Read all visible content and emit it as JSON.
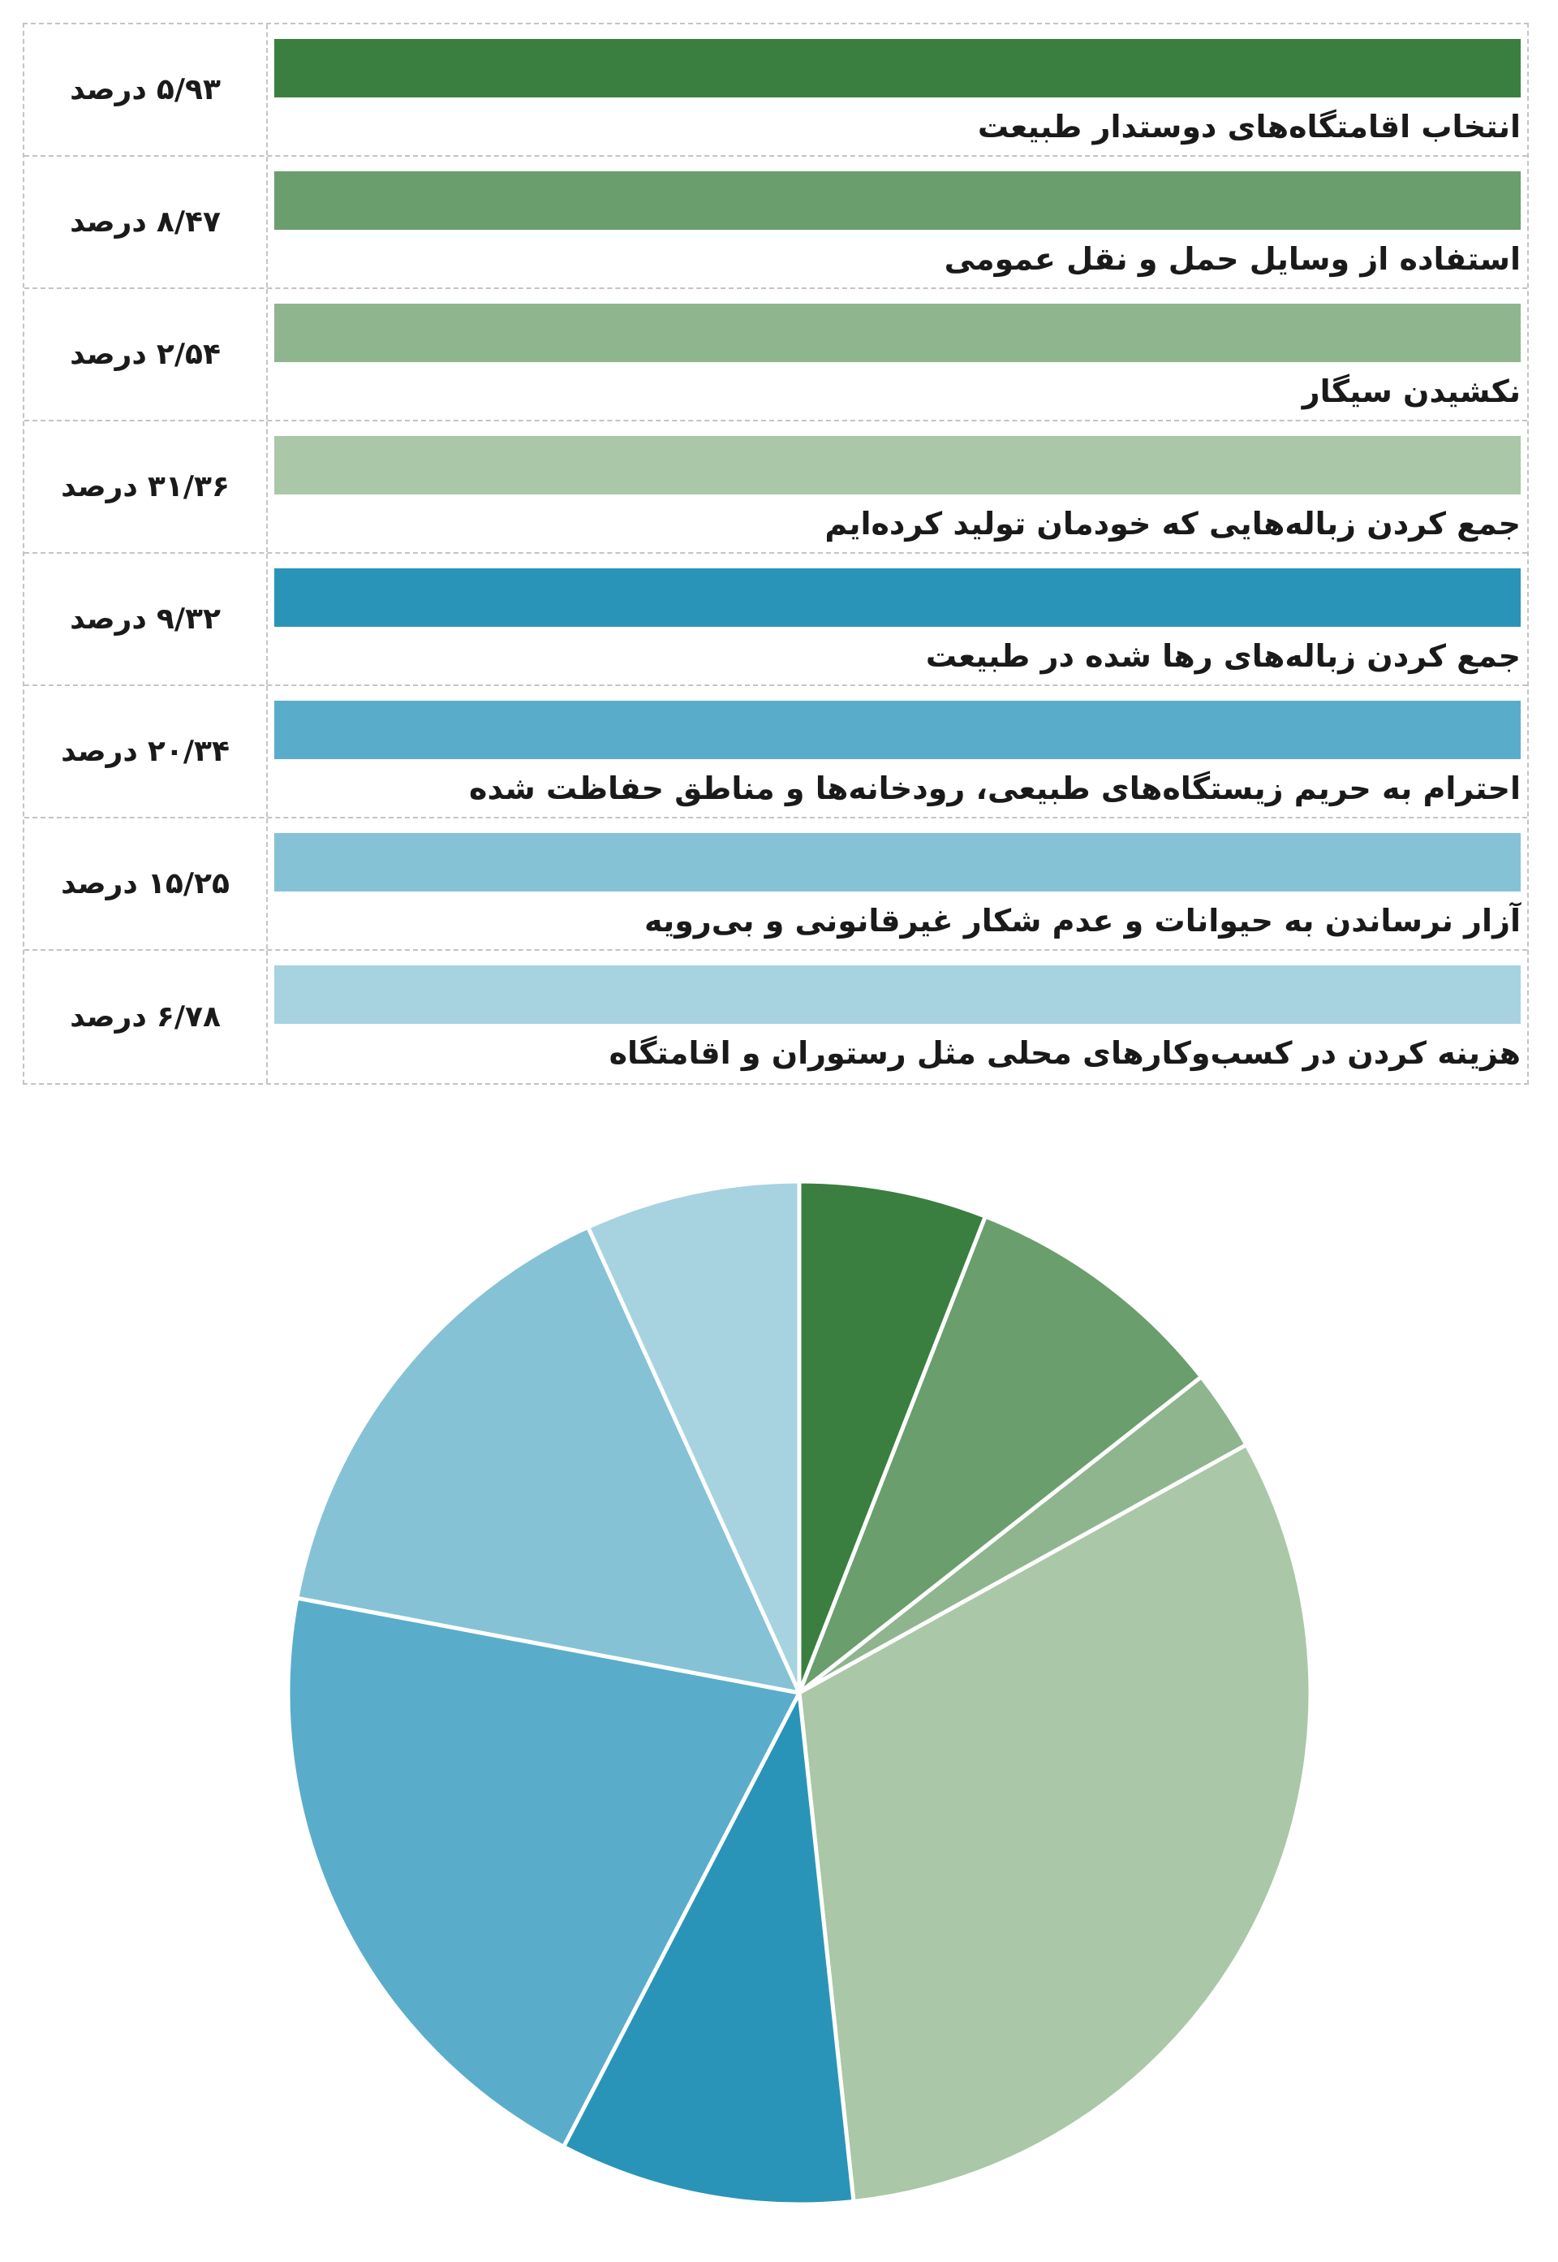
{
  "chart_data": [
    {
      "type": "table",
      "unit_label": "درصد",
      "rows": [
        {
          "label": "انتخاب اقامتگاه‌های دوستدار طبیعت",
          "value_text": "۵/۹۳",
          "value": 5.93,
          "color": "#3a7f3f"
        },
        {
          "label": "استفاده از وسایل حمل و نقل عمومی",
          "value_text": "۸/۴۷",
          "value": 8.47,
          "color": "#6a9e6d"
        },
        {
          "label": "نکشیدن سیگار",
          "value_text": "۲/۵۴",
          "value": 2.54,
          "color": "#8fb58f"
        },
        {
          "label": "جمع کردن زباله‌هایی که خودمان تولید کرده‌ایم",
          "value_text": "۳۱/۳۶",
          "value": 31.36,
          "color": "#aac7a8"
        },
        {
          "label": "جمع کردن زباله‌های رها شده در طبیعت",
          "value_text": "۹/۳۲",
          "value": 9.32,
          "color": "#2a94b8"
        },
        {
          "label": "احترام به حریم زیستگاه‌های طبیعی، رودخانه‌ها و مناطق حفاظت شده",
          "value_text": "۲۰/۳۴",
          "value": 20.34,
          "color": "#5aadca"
        },
        {
          "label": "آزار نرساندن به حیوانات و عدم شکار غیرقانونی و بی‌رویه",
          "value_text": "۱۵/۲۵",
          "value": 15.25,
          "color": "#85c2d6"
        },
        {
          "label": "هزینه کردن در کسب‌وکارهای محلی مثل رستوران و اقامتگاه",
          "value_text": "۶/۷۸",
          "value": 6.78,
          "color": "#a7d3e0"
        }
      ]
    },
    {
      "type": "pie",
      "values": [
        5.93,
        8.47,
        2.54,
        31.36,
        9.32,
        20.34,
        15.25,
        6.78
      ],
      "colors": [
        "#3a7f3f",
        "#6a9e6d",
        "#8fb58f",
        "#aac7a8",
        "#2a94b8",
        "#5aadca",
        "#85c2d6",
        "#a7d3e0"
      ],
      "start": "12 o'clock",
      "direction": "clockwise"
    }
  ]
}
